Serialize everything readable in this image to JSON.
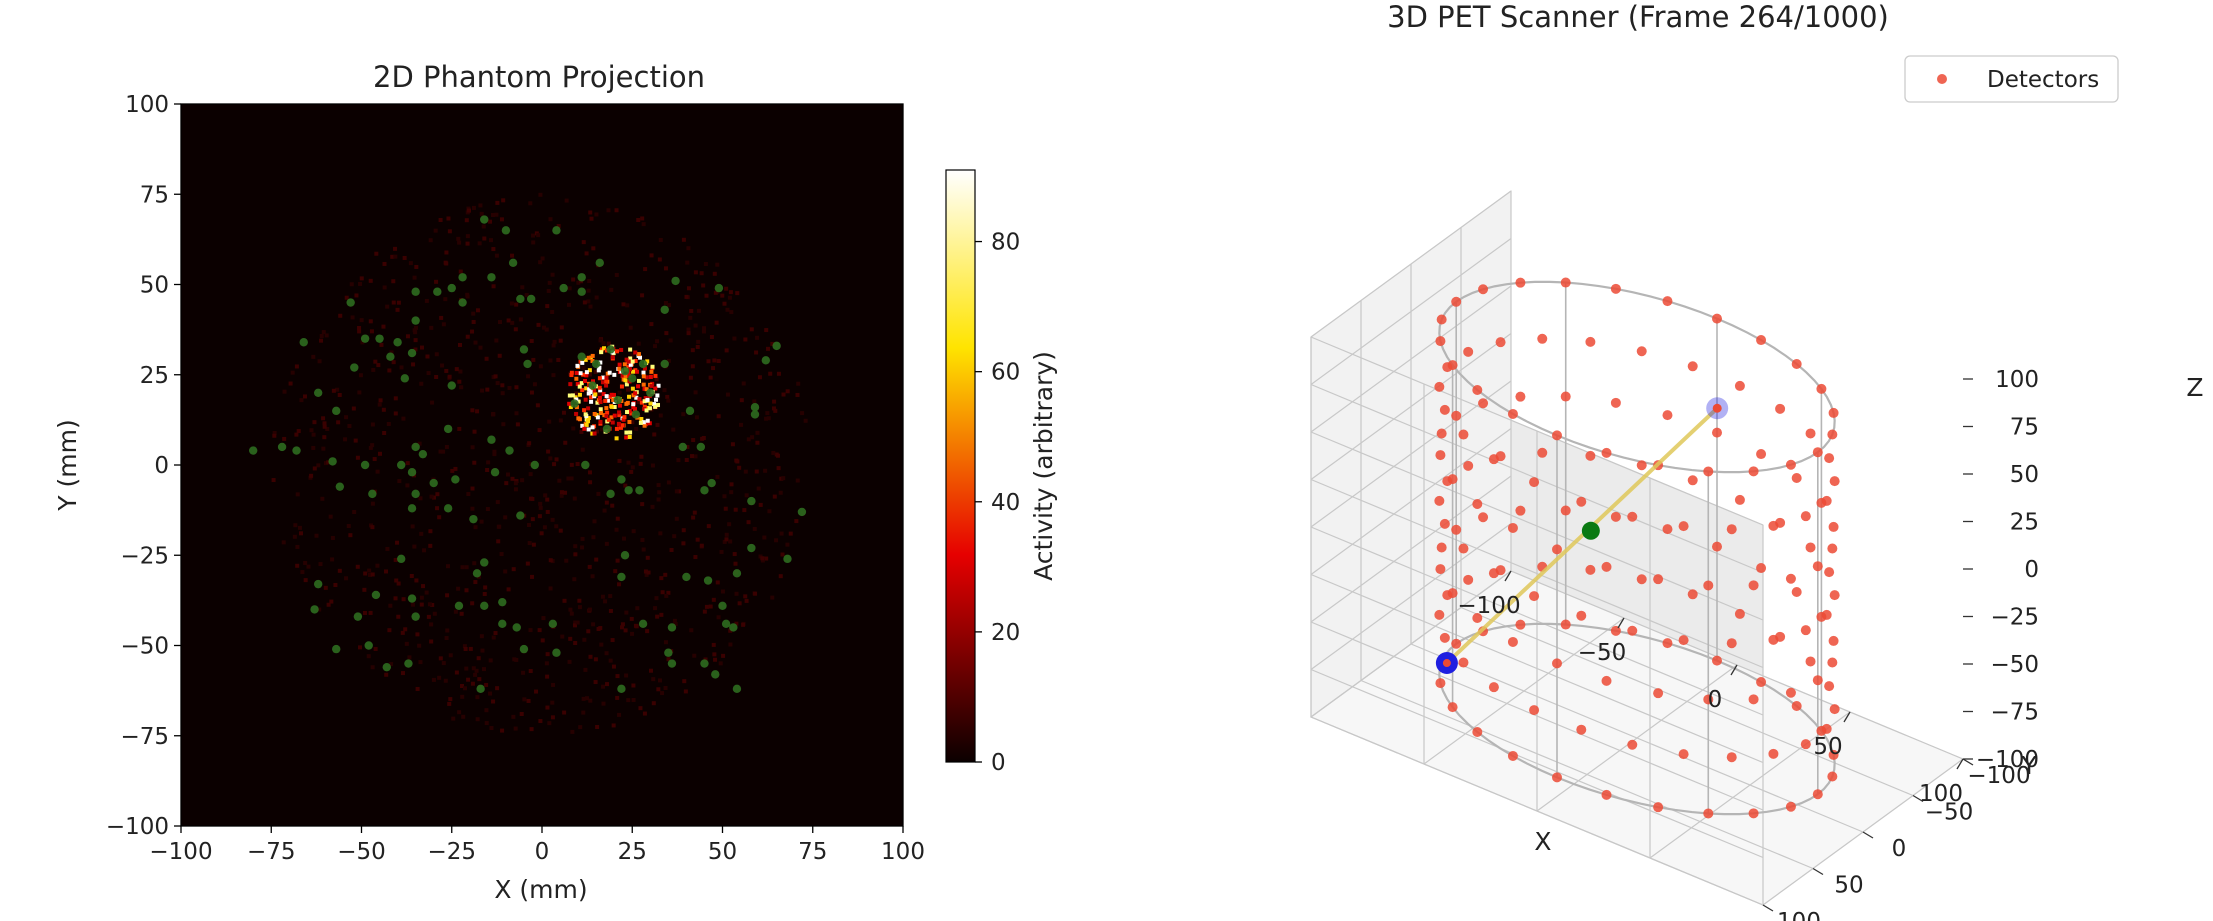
{
  "chart_data": [
    {
      "type": "heatmap",
      "title": "2D Phantom Projection",
      "xlabel": "X (mm)",
      "ylabel": "Y (mm)",
      "xlim": [
        -100,
        100
      ],
      "ylim": [
        -100,
        100
      ],
      "xticks": [
        "−100",
        "−75",
        "−50",
        "−25",
        "0",
        "25",
        "50",
        "75",
        "100"
      ],
      "yticks": [
        "−100",
        "−75",
        "−50",
        "−25",
        "0",
        "25",
        "50",
        "75",
        "100"
      ],
      "colormap": "hot",
      "background_color": "#0b0000",
      "colorbar": {
        "label": "Activity (arbitrary)",
        "range": [
          0,
          91
        ],
        "ticks": [
          "0",
          "20",
          "40",
          "60",
          "80"
        ]
      },
      "hot_region": {
        "center": [
          20,
          20
        ],
        "radius": 13
      },
      "phantom_radius": 75,
      "green_points": {
        "color": "#2e6b1f",
        "points": [
          [
            -16,
            68
          ],
          [
            -10,
            65
          ],
          [
            4,
            65
          ],
          [
            -8,
            56
          ],
          [
            16,
            56
          ],
          [
            -14,
            52
          ],
          [
            -22,
            52
          ],
          [
            -25,
            49
          ],
          [
            -29,
            48
          ],
          [
            -35,
            48
          ],
          [
            -6,
            46
          ],
          [
            -3,
            46
          ],
          [
            11,
            52
          ],
          [
            6,
            49
          ],
          [
            -53,
            45
          ],
          [
            -45,
            35
          ],
          [
            -40,
            34
          ],
          [
            -66,
            34
          ],
          [
            -35,
            40
          ],
          [
            -22,
            45
          ],
          [
            34,
            43
          ],
          [
            49,
            49
          ],
          [
            37,
            51
          ],
          [
            11,
            48
          ],
          [
            -49,
            35
          ],
          [
            -36,
            31
          ],
          [
            -38,
            24
          ],
          [
            -52,
            27
          ],
          [
            -62,
            20
          ],
          [
            -42,
            30
          ],
          [
            -25,
            22
          ],
          [
            -5,
            32
          ],
          [
            -4,
            28
          ],
          [
            65,
            33
          ],
          [
            62,
            29
          ],
          [
            11,
            30
          ],
          [
            15,
            28
          ],
          [
            19,
            32
          ],
          [
            23,
            26
          ],
          [
            14,
            22
          ],
          [
            21,
            18
          ],
          [
            9,
            17
          ],
          [
            26,
            14
          ],
          [
            30,
            20
          ],
          [
            18,
            10
          ],
          [
            25,
            24
          ],
          [
            28,
            28
          ],
          [
            59,
            16
          ],
          [
            59,
            14
          ],
          [
            41,
            15
          ],
          [
            34,
            28
          ],
          [
            -57,
            15
          ],
          [
            -26,
            10
          ],
          [
            -14,
            7
          ],
          [
            -35,
            5
          ],
          [
            -33,
            3
          ],
          [
            -36,
            -2
          ],
          [
            -30,
            -5
          ],
          [
            -68,
            4
          ],
          [
            -72,
            5
          ],
          [
            -80,
            4
          ],
          [
            -58,
            1
          ],
          [
            -49,
            0
          ],
          [
            -35,
            -8
          ],
          [
            -39,
            0
          ],
          [
            -24,
            -4
          ],
          [
            -2,
            0
          ],
          [
            -9,
            4
          ],
          [
            -13,
            -2
          ],
          [
            12,
            0
          ],
          [
            22,
            -4
          ],
          [
            27,
            -7
          ],
          [
            19,
            -8
          ],
          [
            24,
            -7
          ],
          [
            44,
            5
          ],
          [
            39,
            5
          ],
          [
            45,
            -7
          ],
          [
            47,
            -5
          ],
          [
            58,
            -10
          ],
          [
            72,
            -13
          ],
          [
            -56,
            -6
          ],
          [
            -47,
            -8
          ],
          [
            -36,
            -12
          ],
          [
            -26,
            -12
          ],
          [
            -19,
            -15
          ],
          [
            -6,
            -14
          ],
          [
            -16,
            -27
          ],
          [
            -18,
            -30
          ],
          [
            -39,
            -26
          ],
          [
            -62,
            -33
          ],
          [
            -63,
            -40
          ],
          [
            -51,
            -42
          ],
          [
            -46,
            -36
          ],
          [
            -36,
            -37
          ],
          [
            -35,
            -42
          ],
          [
            -23,
            -39
          ],
          [
            -16,
            -39
          ],
          [
            -11,
            -38
          ],
          [
            -11,
            -44
          ],
          [
            -7,
            -45
          ],
          [
            3,
            -44
          ],
          [
            22,
            -31
          ],
          [
            23,
            -25
          ],
          [
            36,
            -45
          ],
          [
            36,
            -55
          ],
          [
            45,
            -55
          ],
          [
            48,
            -58
          ],
          [
            54,
            -62
          ],
          [
            50,
            -39
          ],
          [
            51,
            -44
          ],
          [
            53,
            -45
          ],
          [
            46,
            -32
          ],
          [
            54,
            -30
          ],
          [
            68,
            -26
          ],
          [
            58,
            -23
          ],
          [
            35,
            -52
          ],
          [
            -57,
            -51
          ],
          [
            -48,
            -50
          ],
          [
            -43,
            -56
          ],
          [
            -37,
            -55
          ],
          [
            -17,
            -62
          ],
          [
            -5,
            -51
          ],
          [
            4,
            -52
          ],
          [
            22,
            -62
          ],
          [
            40,
            -31
          ],
          [
            28,
            -44
          ]
        ]
      }
    },
    {
      "type": "scatter3d",
      "title": "3D PET Scanner (Frame 264/1000)",
      "xlabel": "X",
      "ylabel": "Y",
      "zlabel": "Z",
      "xlim": [
        -100,
        100
      ],
      "ylim": [
        -100,
        100
      ],
      "zlim": [
        -100,
        100
      ],
      "xticks": [
        "−100",
        "−50",
        "0",
        "50",
        "100"
      ],
      "yticks": [
        "−100",
        "−50",
        "0",
        "50",
        "100"
      ],
      "zticks": [
        "−100",
        "−75",
        "−50",
        "−25",
        "0",
        "25",
        "50",
        "75",
        "100"
      ],
      "legend": {
        "label": "Detectors",
        "position": "top-right"
      },
      "detector_color": "#ec4a35",
      "detector_ring_radius": 80,
      "detector_rings_z": [
        -90,
        -60,
        -30,
        0,
        30,
        60,
        90
      ],
      "detectors_per_ring": 24,
      "event": {
        "emission_point": [
          -16,
          10,
          5
        ],
        "detector_a": [
          -62,
          50,
          -72
        ],
        "detector_b": [
          20,
          -35,
          70
        ],
        "line_color": "#e0c85a",
        "emission_color": "#0a7a12",
        "hit_color": "#1f1fe0"
      }
    }
  ]
}
